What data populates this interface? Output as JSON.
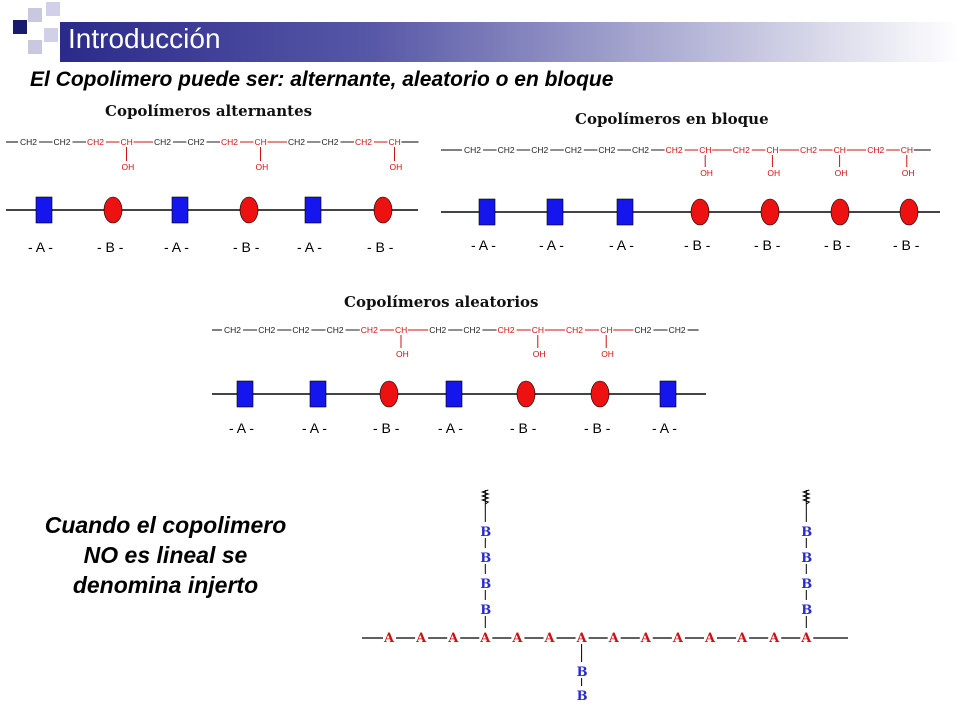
{
  "header": {
    "title": "Introducción",
    "subtitle": "El Copolimero puede ser: alternante, aleatorio o en bloque"
  },
  "colors": {
    "monomer_a": "#1515ee",
    "monomer_b": "#ee1111",
    "title_bar": "#2a2a8a"
  },
  "panels": {
    "alternating": {
      "title": "Copolímeros alternantes",
      "sequence": [
        "A",
        "B",
        "A",
        "B",
        "A",
        "B"
      ],
      "labels": [
        "- A -",
        "- B -",
        "- A -",
        "- B -",
        "- A -",
        "- B -"
      ],
      "chain": [
        {
          "text": "CH2",
          "color": "black"
        },
        {
          "text": "CH2",
          "color": "black"
        },
        {
          "text": "CH2",
          "color": "red"
        },
        {
          "text": "CH",
          "color": "red",
          "oh": "OH"
        },
        {
          "text": "CH2",
          "color": "black"
        },
        {
          "text": "CH2",
          "color": "black"
        },
        {
          "text": "CH2",
          "color": "red"
        },
        {
          "text": "CH",
          "color": "red",
          "oh": "OH"
        },
        {
          "text": "CH2",
          "color": "black"
        },
        {
          "text": "CH2",
          "color": "black"
        },
        {
          "text": "CH2",
          "color": "red"
        },
        {
          "text": "CH",
          "color": "red",
          "oh": "OH"
        }
      ]
    },
    "block": {
      "title": "Copolímeros en bloque",
      "sequence": [
        "A",
        "A",
        "A",
        "B",
        "B",
        "B",
        "B"
      ],
      "labels": [
        "- A -",
        "- A -",
        "- A -",
        "- B -",
        "- B -",
        "- B -",
        "- B -"
      ],
      "chain": [
        {
          "text": "CH2",
          "color": "black"
        },
        {
          "text": "CH2",
          "color": "black"
        },
        {
          "text": "CH2",
          "color": "black"
        },
        {
          "text": "CH2",
          "color": "black"
        },
        {
          "text": "CH2",
          "color": "black"
        },
        {
          "text": "CH2",
          "color": "black"
        },
        {
          "text": "CH2",
          "color": "red"
        },
        {
          "text": "CH",
          "color": "red",
          "oh": "OH"
        },
        {
          "text": "CH2",
          "color": "red"
        },
        {
          "text": "CH",
          "color": "red",
          "oh": "OH"
        },
        {
          "text": "CH2",
          "color": "red"
        },
        {
          "text": "CH",
          "color": "red",
          "oh": "OH"
        },
        {
          "text": "CH2",
          "color": "red"
        },
        {
          "text": "CH",
          "color": "red",
          "oh": "OH"
        }
      ]
    },
    "random": {
      "title": "Copolímeros aleatorios",
      "sequence": [
        "A",
        "A",
        "B",
        "A",
        "B",
        "B",
        "A"
      ],
      "labels": [
        "- A -",
        "- A -",
        "- B -",
        "- A -",
        "- B -",
        "- B -",
        "- A -"
      ],
      "chain": [
        {
          "text": "CH2",
          "color": "black"
        },
        {
          "text": "CH2",
          "color": "black"
        },
        {
          "text": "CH2",
          "color": "black"
        },
        {
          "text": "CH2",
          "color": "black"
        },
        {
          "text": "CH2",
          "color": "red"
        },
        {
          "text": "CH",
          "color": "red",
          "oh": "OH"
        },
        {
          "text": "CH2",
          "color": "black"
        },
        {
          "text": "CH2",
          "color": "black"
        },
        {
          "text": "CH2",
          "color": "red"
        },
        {
          "text": "CH",
          "color": "red",
          "oh": "OH"
        },
        {
          "text": "CH2",
          "color": "red"
        },
        {
          "text": "CH",
          "color": "red",
          "oh": "OH"
        },
        {
          "text": "CH2",
          "color": "black"
        },
        {
          "text": "CH2",
          "color": "black"
        }
      ]
    }
  },
  "graft": {
    "text": "Cuando el copolimero NO es lineal se denomina injerto",
    "backbone": [
      "A",
      "A",
      "A",
      "A",
      "A",
      "A",
      "A",
      "A",
      "A",
      "A",
      "A",
      "A",
      "A",
      "A"
    ],
    "branches": [
      {
        "attach": 3,
        "direction": "up",
        "units": [
          "B",
          "B",
          "B",
          "B"
        ]
      },
      {
        "attach": 13,
        "direction": "up",
        "units": [
          "B",
          "B",
          "B",
          "B"
        ]
      },
      {
        "attach": 6,
        "direction": "down",
        "units": [
          "B",
          "B"
        ]
      }
    ]
  }
}
